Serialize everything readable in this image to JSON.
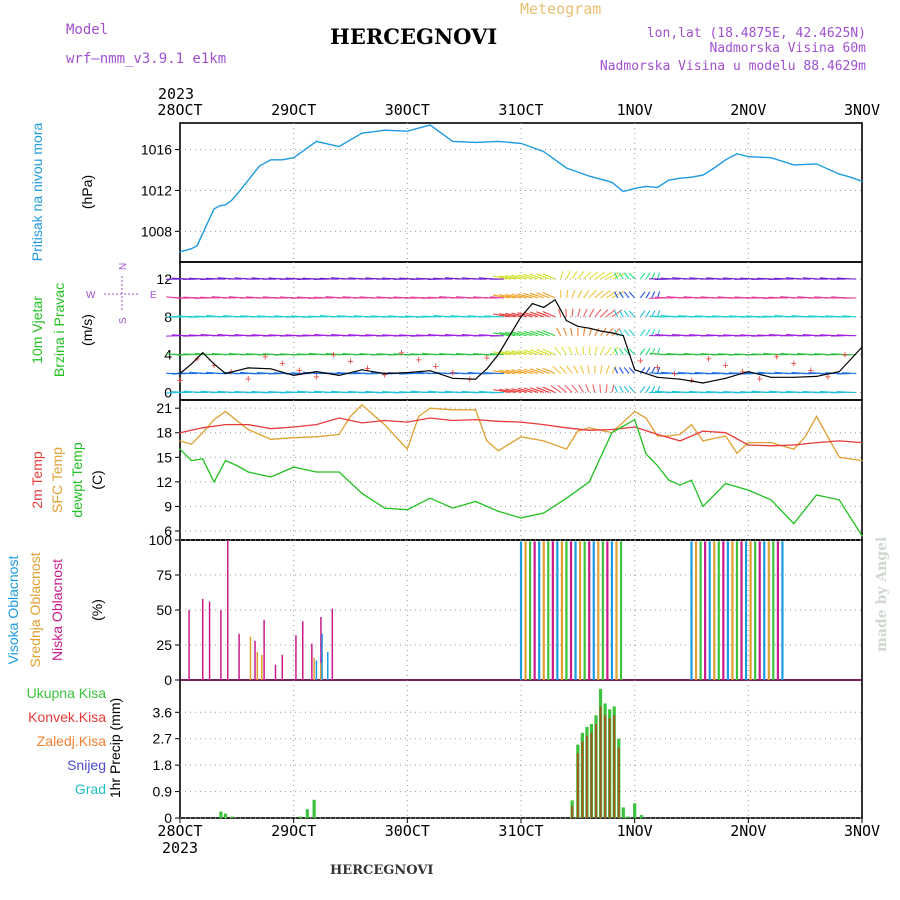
{
  "header": {
    "model_label": "Model",
    "model_name": "wrf—nmm_v3.9.1  e1km",
    "meteogram_label": "Meteogram",
    "station": "HERCEGNOVI",
    "lonlat": "lon,lat (18.4875E, 42.4625N)",
    "altitude": "Nadmorska Visina 60m",
    "model_altitude": "Nadmorska Visina u modelu 88.4629m",
    "year": "2023",
    "footer_station": "HERCEGNOVI",
    "watermark": "made by Angel"
  },
  "colors": {
    "pressure": "#1f9be0",
    "temp2m": "#e83a3a",
    "sfc": "#e0a030",
    "dewpt": "#22c020",
    "high_cloud": "#1a9be0",
    "mid_cloud": "#e0a030",
    "low_cloud": "#c81a8c",
    "total_rain": "#3cc23c",
    "conv_rain": "#e83a3a",
    "strat_rain": "#f08030",
    "snow": "#4a4ad8",
    "hail": "#20c0c0",
    "label_purple": "#a050d0",
    "label_gold": "#e8c070"
  },
  "time_axis": {
    "ticks": [
      "28OCT",
      "29OCT",
      "30OCT",
      "31OCT",
      "1NOV",
      "2NOV",
      "3NOV"
    ],
    "year": "2023"
  },
  "panel_labels": {
    "pressure": {
      "name": "Pritisak na nivou mora",
      "unit": "(hPa)"
    },
    "wind": {
      "name1": "10m Vjetar",
      "name2": "Brzina i Pravac",
      "unit": "(m/s)",
      "compass_n": "N",
      "compass_s": "S",
      "compass_w": "W",
      "compass_e": "E"
    },
    "temp": {
      "name1": "2m Temp",
      "name2": "SFC Temp",
      "name3": "dewpt Temp",
      "unit": "(C)"
    },
    "cloud": {
      "name1": "Visoka Oblacnost",
      "name2": "Srednja Oblacnost",
      "name3": "Niska Oblacnost",
      "unit": "(%)"
    },
    "precip": {
      "name1": "Ukupna Kisa",
      "name2": "Konvek.Kisa",
      "name3": "Zaledj.Kisa",
      "name4": "Snijeg",
      "name5": "Grad",
      "unit": "1hr Precip (mm)"
    }
  },
  "chart_data": [
    {
      "type": "line",
      "panel": "pressure",
      "ylabel": "(hPa)",
      "yticks": [
        1008,
        1012,
        1016
      ],
      "ylim": [
        1005.0,
        1018.6
      ],
      "grid": true,
      "series": [
        {
          "name": "Pritisak na nivou mora",
          "x": [
            0,
            0.1,
            0.15,
            0.2,
            0.25,
            0.3,
            0.35,
            0.4,
            0.45,
            0.5,
            0.6,
            0.7,
            0.8,
            0.9,
            1.0,
            1.2,
            1.4,
            1.6,
            1.8,
            2.0,
            2.2,
            2.4,
            2.6,
            2.8,
            3.0,
            3.1,
            3.2,
            3.4,
            3.6,
            3.8,
            3.9,
            4.0,
            4.1,
            4.2,
            4.3,
            4.4,
            4.5,
            4.6,
            4.7,
            4.8,
            4.9,
            5.0,
            5.2,
            5.4,
            5.6,
            5.8,
            5.9,
            6.0
          ],
          "values": [
            1006.0,
            1006.3,
            1006.6,
            1007.8,
            1009.0,
            1010.2,
            1010.5,
            1010.6,
            1011.0,
            1011.6,
            1013.0,
            1014.4,
            1015.0,
            1015.0,
            1015.2,
            1016.8,
            1016.3,
            1017.6,
            1017.9,
            1017.8,
            1018.4,
            1016.8,
            1016.7,
            1016.8,
            1016.6,
            1016.2,
            1015.8,
            1014.2,
            1013.4,
            1012.8,
            1011.9,
            1012.2,
            1012.4,
            1012.3,
            1013.0,
            1013.2,
            1013.3,
            1013.5,
            1014.2,
            1015.0,
            1015.6,
            1015.3,
            1015.2,
            1014.5,
            1014.6,
            1013.6,
            1013.3,
            1012.9
          ]
        }
      ]
    },
    {
      "type": "line",
      "panel": "wind",
      "ylabel": "(m/s)",
      "yticks": [
        0,
        4,
        8,
        12
      ],
      "ylim": [
        -0.8,
        13.8
      ],
      "grid": true,
      "series": [
        {
          "name": "Brzina",
          "x": [
            0,
            0.1,
            0.2,
            0.3,
            0.4,
            0.5,
            0.6,
            0.8,
            1.0,
            1.2,
            1.4,
            1.6,
            1.8,
            2.0,
            2.2,
            2.4,
            2.6,
            2.7,
            2.8,
            2.9,
            3.0,
            3.1,
            3.2,
            3.3,
            3.4,
            3.5,
            3.6,
            3.7,
            3.8,
            3.9,
            4.0,
            4.2,
            4.4,
            4.6,
            4.8,
            5.0,
            5.2,
            5.4,
            5.6,
            5.8,
            6.0
          ],
          "values": [
            2.0,
            3.0,
            4.2,
            3.0,
            2.0,
            2.3,
            2.6,
            2.5,
            1.8,
            2.2,
            1.8,
            2.4,
            2.0,
            2.1,
            2.3,
            1.5,
            1.4,
            2.5,
            4.0,
            6.0,
            8.0,
            9.4,
            9.0,
            9.8,
            7.6,
            7.0,
            6.8,
            6.5,
            6.3,
            6.0,
            2.4,
            1.6,
            1.4,
            1.0,
            1.5,
            2.2,
            1.6,
            1.6,
            1.7,
            2.2,
            4.8
          ]
        }
      ]
    },
    {
      "type": "line",
      "panel": "temperature",
      "ylabel": "(C)",
      "yticks": [
        6,
        9,
        12,
        15,
        18,
        21
      ],
      "ylim": [
        4.9,
        22.0
      ],
      "grid": true,
      "series": [
        {
          "name": "2m Temp",
          "x": [
            0,
            0.2,
            0.4,
            0.6,
            0.8,
            1.0,
            1.2,
            1.4,
            1.6,
            1.8,
            2.0,
            2.2,
            2.4,
            2.6,
            2.8,
            3.0,
            3.2,
            3.4,
            3.6,
            3.8,
            4.0,
            4.2,
            4.4,
            4.6,
            4.8,
            5.0,
            5.2,
            5.4,
            5.6,
            5.8,
            6.0
          ],
          "values": [
            18.0,
            18.6,
            19.0,
            19.0,
            18.5,
            18.7,
            19.0,
            19.8,
            19.2,
            19.5,
            19.3,
            19.8,
            19.5,
            19.6,
            19.4,
            19.3,
            19.0,
            18.6,
            18.3,
            18.4,
            18.7,
            17.8,
            17.0,
            18.2,
            18.0,
            16.5,
            16.4,
            16.5,
            16.8,
            17.0,
            16.8
          ]
        },
        {
          "name": "SFC Temp",
          "x": [
            0,
            0.1,
            0.2,
            0.3,
            0.4,
            0.5,
            0.6,
            0.8,
            1.0,
            1.2,
            1.4,
            1.5,
            1.6,
            1.8,
            2.0,
            2.1,
            2.2,
            2.4,
            2.6,
            2.7,
            2.8,
            3.0,
            3.2,
            3.4,
            3.5,
            3.6,
            3.8,
            4.0,
            4.1,
            4.2,
            4.3,
            4.4,
            4.5,
            4.6,
            4.8,
            4.9,
            5.0,
            5.2,
            5.4,
            5.5,
            5.6,
            5.8,
            6.0
          ],
          "values": [
            17.0,
            16.6,
            18.0,
            19.6,
            20.6,
            19.5,
            18.4,
            17.2,
            17.4,
            17.5,
            17.8,
            20.0,
            21.4,
            19.0,
            16.0,
            20.0,
            21.0,
            20.8,
            20.8,
            17.0,
            15.8,
            17.5,
            17.0,
            16.0,
            18.2,
            18.6,
            18.0,
            20.6,
            19.8,
            17.6,
            17.6,
            17.8,
            19.0,
            17.0,
            17.6,
            15.5,
            16.8,
            16.8,
            16.0,
            17.5,
            20.0,
            15.0,
            14.6
          ]
        },
        {
          "name": "dewpt Temp",
          "x": [
            0,
            0.1,
            0.2,
            0.3,
            0.4,
            0.5,
            0.6,
            0.8,
            1.0,
            1.2,
            1.4,
            1.6,
            1.8,
            2.0,
            2.2,
            2.4,
            2.6,
            2.8,
            3.0,
            3.2,
            3.4,
            3.6,
            3.8,
            4.0,
            4.1,
            4.2,
            4.3,
            4.4,
            4.5,
            4.6,
            4.8,
            5.0,
            5.2,
            5.4,
            5.6,
            5.8,
            6.0
          ],
          "values": [
            16.0,
            14.6,
            14.8,
            12.0,
            14.6,
            14.0,
            13.2,
            12.6,
            13.8,
            13.2,
            13.2,
            10.6,
            8.8,
            8.6,
            10.0,
            8.8,
            9.6,
            8.4,
            7.6,
            8.2,
            10.0,
            12.0,
            18.0,
            19.6,
            15.4,
            14.0,
            12.2,
            11.6,
            12.2,
            9.0,
            11.8,
            11.0,
            9.8,
            6.9,
            10.4,
            9.8,
            5.4
          ]
        }
      ]
    },
    {
      "type": "bar",
      "panel": "cloud",
      "ylabel": "(%)",
      "yticks": [
        0,
        25,
        50,
        75,
        100
      ],
      "ylim": [
        0,
        100
      ],
      "grid": true,
      "series": [
        {
          "name": "Niska Oblacnost",
          "x": [
            0.08,
            0.2,
            0.26,
            0.36,
            0.42,
            0.52,
            0.66,
            0.74,
            0.84,
            0.9,
            1.02,
            1.08,
            1.16,
            1.24,
            1.34
          ],
          "values": [
            50,
            58,
            56,
            50,
            100,
            33,
            28,
            43,
            11,
            18,
            32,
            42,
            26,
            45,
            51
          ]
        },
        {
          "name": "Srednja Oblacnost",
          "x": [
            0.62,
            0.68,
            0.72,
            1.18,
            1.24
          ],
          "values": [
            31,
            20,
            18,
            16,
            12
          ]
        },
        {
          "name": "Visoka Oblacnost",
          "x": [
            1.2,
            1.25,
            1.3
          ],
          "values": [
            14,
            33,
            20
          ]
        }
      ],
      "blocks": [
        {
          "name": "overcast-block-1",
          "x_start": 3.0,
          "x_end": 3.9,
          "value": 99
        },
        {
          "name": "overcast-block-2",
          "x_start": 4.5,
          "x_end": 5.3,
          "value": 99
        }
      ]
    },
    {
      "type": "bar",
      "panel": "precip",
      "ylabel": "1hr Precip (mm)",
      "yticks": [
        0,
        0.9,
        1.8,
        2.7,
        3.6
      ],
      "ylim": [
        0,
        4.7
      ],
      "grid": true,
      "series": [
        {
          "name": "Ukupna Kisa",
          "x": [
            0.36,
            0.4,
            0.46,
            1.06,
            1.12,
            1.18,
            3.45,
            3.5,
            3.54,
            3.58,
            3.62,
            3.66,
            3.7,
            3.74,
            3.78,
            3.82,
            3.86,
            3.9,
            3.94,
            4.0,
            4.06
          ],
          "values": [
            0.22,
            0.15,
            0.05,
            0.05,
            0.3,
            0.62,
            0.6,
            2.5,
            2.9,
            3.1,
            3.2,
            3.5,
            4.4,
            3.9,
            3.7,
            3.8,
            2.7,
            0.36,
            0.05,
            0.5,
            0.1
          ]
        },
        {
          "name": "Konvek.Kisa",
          "x": [
            3.45,
            3.5,
            3.54,
            3.58,
            3.62,
            3.66,
            3.7,
            3.74,
            3.78,
            3.82,
            3.86
          ],
          "values": [
            0.4,
            2.2,
            2.6,
            2.8,
            2.9,
            3.2,
            3.8,
            3.5,
            3.4,
            3.5,
            2.4
          ]
        }
      ]
    }
  ]
}
